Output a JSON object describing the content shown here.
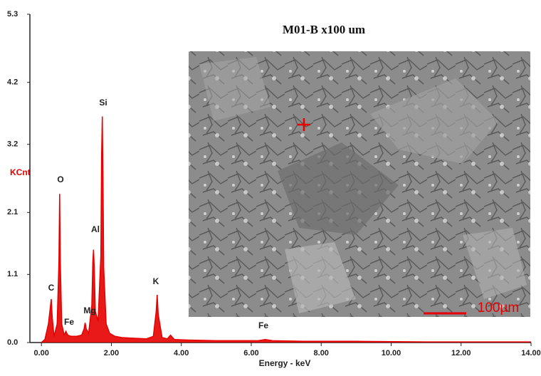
{
  "chart_data": {
    "type": "line",
    "title": "M01-B x100 um",
    "xlabel": "Energy - keV",
    "ylabel": "KCnt",
    "scale_bar": "100µm",
    "color": "#e60000",
    "xlim": [
      -0.33,
      14.0
    ],
    "ylim": [
      0,
      5.3
    ],
    "xticks": [
      {
        "value": 0,
        "label": "0.00"
      },
      {
        "value": 2,
        "label": "2.00"
      },
      {
        "value": 4,
        "label": "4.00"
      },
      {
        "value": 6,
        "label": "6.00"
      },
      {
        "value": 8,
        "label": "8.00"
      },
      {
        "value": 10,
        "label": "10.00"
      },
      {
        "value": 12,
        "label": "12.00"
      },
      {
        "value": 14,
        "label": "14.00"
      }
    ],
    "yticks": [
      {
        "value": 0,
        "label": "0.0"
      },
      1.1,
      2.1,
      3.2,
      4.2,
      5.3
    ],
    "annotations": [
      "C",
      "O",
      "Fe",
      "Mg",
      "Si",
      "Al",
      "K",
      "Fe"
    ],
    "x": [
      0.0,
      0.1,
      0.2,
      0.25,
      0.28,
      0.31,
      0.36,
      0.45,
      0.5,
      0.52,
      0.54,
      0.58,
      0.65,
      0.7,
      0.75,
      0.85,
      1.0,
      1.15,
      1.22,
      1.25,
      1.28,
      1.35,
      1.44,
      1.47,
      1.49,
      1.51,
      1.54,
      1.62,
      1.7,
      1.72,
      1.74,
      1.76,
      1.78,
      1.85,
      1.95,
      2.1,
      2.3,
      2.6,
      3.0,
      3.2,
      3.28,
      3.31,
      3.34,
      3.45,
      3.6,
      3.69,
      3.8,
      4.2,
      5.0,
      6.2,
      6.4,
      6.6,
      7.5,
      9.0,
      11.0,
      14.0
    ],
    "values": [
      0.0,
      0.05,
      0.3,
      0.55,
      0.7,
      0.4,
      0.1,
      0.3,
      1.3,
      2.4,
      1.3,
      0.3,
      0.12,
      0.18,
      0.12,
      0.1,
      0.1,
      0.12,
      0.22,
      0.32,
      0.22,
      0.15,
      0.6,
      1.3,
      1.5,
      1.2,
      0.5,
      0.35,
      1.4,
      3.0,
      3.65,
      2.6,
      1.2,
      0.3,
      0.15,
      0.1,
      0.08,
      0.07,
      0.06,
      0.1,
      0.5,
      0.77,
      0.45,
      0.08,
      0.06,
      0.12,
      0.05,
      0.04,
      0.03,
      0.03,
      0.05,
      0.03,
      0.02,
      0.02,
      0.01,
      0.01
    ]
  }
}
